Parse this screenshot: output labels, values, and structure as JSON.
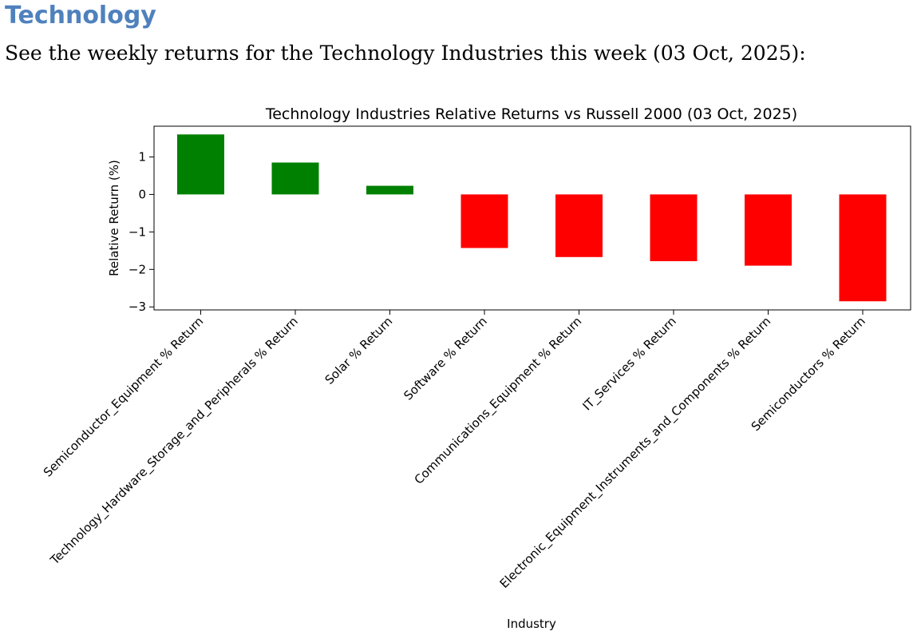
{
  "section": {
    "heading": "Technology",
    "intro": "See the weekly returns for the Technology Industries this week (03 Oct, 2025):"
  },
  "chart_data": {
    "type": "bar",
    "title": "Technology Industries Relative Returns vs Russell 2000 (03 Oct, 2025)",
    "xlabel": "Industry",
    "ylabel": "Relative Return (%)",
    "categories": [
      "Semiconductor_Equipment % Return",
      "Technology_Hardware_Storage_and_Peripherals % Return",
      "Solar % Return",
      "Software % Return",
      "Communications_Equipment % Return",
      "IT_Services % Return",
      "Electronic_Equipment_Instruments_and_Components % Return",
      "Semiconductors % Return"
    ],
    "values": [
      1.6,
      0.85,
      0.23,
      -1.43,
      -1.67,
      -1.78,
      -1.9,
      -2.85
    ],
    "ylim": [
      -3.08,
      1.82
    ],
    "yticks": [
      1,
      0,
      -1,
      -2,
      -3
    ],
    "ytick_labels": [
      "1",
      "0",
      "−1",
      "−2",
      "−3"
    ],
    "colors": {
      "positive": "#008000",
      "negative": "#ff0000"
    },
    "grid": false,
    "legend": "none"
  }
}
